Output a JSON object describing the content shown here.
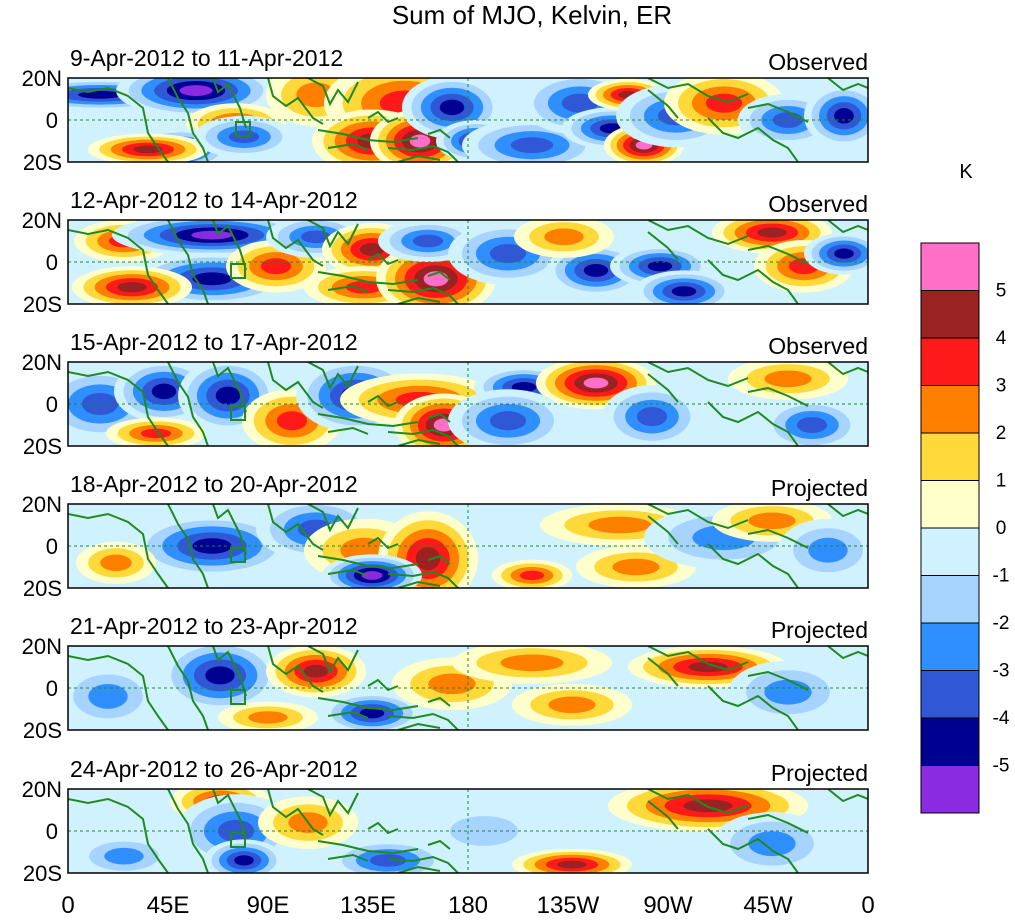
{
  "title": "Sum of MJO, Kelvin, ER",
  "panels": [
    {
      "date_range": "9-Apr-2012 to 11-Apr-2012",
      "kind": "Observed",
      "blobs": [
        [
          0.04,
          0.2,
          0.09,
          0.15,
          -4.5
        ],
        [
          0.16,
          0.15,
          0.08,
          0.25,
          -5.5
        ],
        [
          0.21,
          0.55,
          0.05,
          0.2,
          3.5
        ],
        [
          0.14,
          0.85,
          0.05,
          0.2,
          -4.5
        ],
        [
          0.1,
          0.85,
          0.06,
          0.15,
          4.5
        ],
        [
          0.22,
          0.7,
          0.05,
          0.2,
          -3.5
        ],
        [
          0.31,
          0.2,
          0.05,
          0.3,
          2.5
        ],
        [
          0.42,
          0.3,
          0.08,
          0.4,
          3.5
        ],
        [
          0.38,
          0.75,
          0.06,
          0.3,
          4.5
        ],
        [
          0.44,
          0.75,
          0.05,
          0.3,
          5.5
        ],
        [
          0.48,
          0.35,
          0.05,
          0.3,
          -4.5
        ],
        [
          0.51,
          0.75,
          0.04,
          0.2,
          -4.5
        ],
        [
          0.58,
          0.8,
          0.07,
          0.25,
          -3.5
        ],
        [
          0.64,
          0.3,
          0.06,
          0.3,
          -3.5
        ],
        [
          0.68,
          0.6,
          0.05,
          0.2,
          -4.5
        ],
        [
          0.7,
          0.2,
          0.04,
          0.15,
          4.5
        ],
        [
          0.72,
          0.8,
          0.04,
          0.2,
          5.5
        ],
        [
          0.76,
          0.45,
          0.06,
          0.3,
          -3.5
        ],
        [
          0.82,
          0.3,
          0.06,
          0.3,
          3.5
        ],
        [
          0.9,
          0.5,
          0.05,
          0.25,
          -3.5
        ],
        [
          0.97,
          0.45,
          0.04,
          0.3,
          -4.5
        ]
      ]
    },
    {
      "date_range": "12-Apr-2012 to 14-Apr-2012",
      "kind": "Observed",
      "blobs": [
        [
          0.07,
          0.25,
          0.05,
          0.2,
          3.5
        ],
        [
          0.18,
          0.18,
          0.1,
          0.2,
          -5.5
        ],
        [
          0.18,
          0.7,
          0.08,
          0.25,
          -4.5
        ],
        [
          0.08,
          0.8,
          0.06,
          0.2,
          4.5
        ],
        [
          0.26,
          0.55,
          0.05,
          0.25,
          3.5
        ],
        [
          0.31,
          0.2,
          0.05,
          0.2,
          -3.5
        ],
        [
          0.38,
          0.35,
          0.05,
          0.25,
          4.5
        ],
        [
          0.37,
          0.8,
          0.06,
          0.2,
          3.5
        ],
        [
          0.46,
          0.7,
          0.06,
          0.35,
          5.5
        ],
        [
          0.45,
          0.25,
          0.05,
          0.2,
          -3.5
        ],
        [
          0.55,
          0.4,
          0.06,
          0.3,
          -3.5
        ],
        [
          0.66,
          0.6,
          0.05,
          0.25,
          -4.5
        ],
        [
          0.62,
          0.2,
          0.05,
          0.2,
          2.5
        ],
        [
          0.74,
          0.55,
          0.05,
          0.2,
          -4.5
        ],
        [
          0.77,
          0.85,
          0.05,
          0.2,
          -4.5
        ],
        [
          0.88,
          0.15,
          0.06,
          0.2,
          4.5
        ],
        [
          0.92,
          0.55,
          0.05,
          0.25,
          3.5
        ],
        [
          0.97,
          0.4,
          0.04,
          0.2,
          -4.5
        ]
      ]
    },
    {
      "date_range": "15-Apr-2012 to 17-Apr-2012",
      "kind": "Observed",
      "blobs": [
        [
          0.04,
          0.5,
          0.06,
          0.35,
          -3.5
        ],
        [
          0.12,
          0.35,
          0.05,
          0.3,
          -4.5
        ],
        [
          0.11,
          0.85,
          0.05,
          0.15,
          3.5
        ],
        [
          0.2,
          0.4,
          0.05,
          0.35,
          -4.5
        ],
        [
          0.28,
          0.7,
          0.05,
          0.3,
          3.5
        ],
        [
          0.36,
          0.4,
          0.06,
          0.35,
          -4.5
        ],
        [
          0.44,
          0.45,
          0.08,
          0.25,
          3.5
        ],
        [
          0.47,
          0.75,
          0.05,
          0.3,
          5.5
        ],
        [
          0.57,
          0.3,
          0.05,
          0.2,
          -4.5
        ],
        [
          0.66,
          0.25,
          0.06,
          0.25,
          5.5
        ],
        [
          0.55,
          0.7,
          0.06,
          0.3,
          -3.5
        ],
        [
          0.73,
          0.65,
          0.05,
          0.3,
          -3.5
        ],
        [
          0.9,
          0.2,
          0.06,
          0.2,
          2.5
        ],
        [
          0.93,
          0.75,
          0.05,
          0.25,
          -3.5
        ]
      ]
    },
    {
      "date_range": "18-Apr-2012 to 20-Apr-2012",
      "kind": "Projected",
      "blobs": [
        [
          0.18,
          0.5,
          0.08,
          0.3,
          -4.5
        ],
        [
          0.31,
          0.3,
          0.06,
          0.3,
          -3.5
        ],
        [
          0.37,
          0.55,
          0.06,
          0.3,
          2.5
        ],
        [
          0.45,
          0.65,
          0.05,
          0.45,
          4.5
        ],
        [
          0.38,
          0.85,
          0.05,
          0.2,
          -5.5
        ],
        [
          0.58,
          0.85,
          0.04,
          0.15,
          3.5
        ],
        [
          0.69,
          0.25,
          0.08,
          0.2,
          2.5
        ],
        [
          0.71,
          0.75,
          0.06,
          0.2,
          2.5
        ],
        [
          0.82,
          0.4,
          0.08,
          0.3,
          -2.5
        ],
        [
          0.88,
          0.2,
          0.06,
          0.2,
          2.5
        ],
        [
          0.95,
          0.55,
          0.05,
          0.3,
          -2.5
        ],
        [
          0.06,
          0.7,
          0.04,
          0.2,
          2.5
        ]
      ]
    },
    {
      "date_range": "21-Apr-2012 to 23-Apr-2012",
      "kind": "Projected",
      "blobs": [
        [
          0.19,
          0.35,
          0.06,
          0.35,
          -4.5
        ],
        [
          0.31,
          0.3,
          0.05,
          0.25,
          4.5
        ],
        [
          0.38,
          0.8,
          0.05,
          0.2,
          -4.5
        ],
        [
          0.25,
          0.85,
          0.05,
          0.15,
          2.5
        ],
        [
          0.48,
          0.45,
          0.06,
          0.25,
          2.5
        ],
        [
          0.58,
          0.2,
          0.08,
          0.2,
          2.5
        ],
        [
          0.63,
          0.7,
          0.06,
          0.2,
          2.5
        ],
        [
          0.8,
          0.25,
          0.08,
          0.2,
          4.5
        ],
        [
          0.9,
          0.55,
          0.06,
          0.3,
          -2.5
        ],
        [
          0.05,
          0.6,
          0.05,
          0.3,
          -2.5
        ]
      ]
    },
    {
      "date_range": "24-Apr-2012 to 26-Apr-2012",
      "kind": "Projected",
      "blobs": [
        [
          0.19,
          0.15,
          0.05,
          0.2,
          3.5
        ],
        [
          0.21,
          0.5,
          0.06,
          0.35,
          -3.5
        ],
        [
          0.22,
          0.85,
          0.04,
          0.2,
          -4.5
        ],
        [
          0.4,
          0.85,
          0.06,
          0.2,
          -3.5
        ],
        [
          0.3,
          0.4,
          0.05,
          0.25,
          2.5
        ],
        [
          0.63,
          0.9,
          0.06,
          0.15,
          4.5
        ],
        [
          0.8,
          0.2,
          0.1,
          0.25,
          4.5
        ],
        [
          0.88,
          0.65,
          0.06,
          0.3,
          -2.5
        ],
        [
          0.52,
          0.5,
          0.06,
          0.25,
          -1.5
        ],
        [
          0.07,
          0.8,
          0.05,
          0.2,
          -2.5
        ]
      ]
    }
  ],
  "lat_labels": [
    "20N",
    "0",
    "20S"
  ],
  "lon_labels": [
    "0",
    "45E",
    "90E",
    "135E",
    "180",
    "135W",
    "90W",
    "45W",
    "0"
  ],
  "colorbar": {
    "unit": "K",
    "labels": [
      "5",
      "4",
      "3",
      "2",
      "1",
      "0",
      "-1",
      "-2",
      "-3",
      "-4",
      "-5"
    ],
    "colors_top_to_bottom": [
      "#ff6ec7",
      "#9b2222",
      "#ff1a1a",
      "#ff7f00",
      "#ffd93a",
      "#ffffcc",
      "#d0f2ff",
      "#a6d3ff",
      "#2f8fff",
      "#3057d6",
      "#000091",
      "#8a2be2"
    ]
  },
  "colors": {
    "land": "#1f8a1f",
    "frame": "#000000",
    "zero_line": "#1f8a1f"
  }
}
